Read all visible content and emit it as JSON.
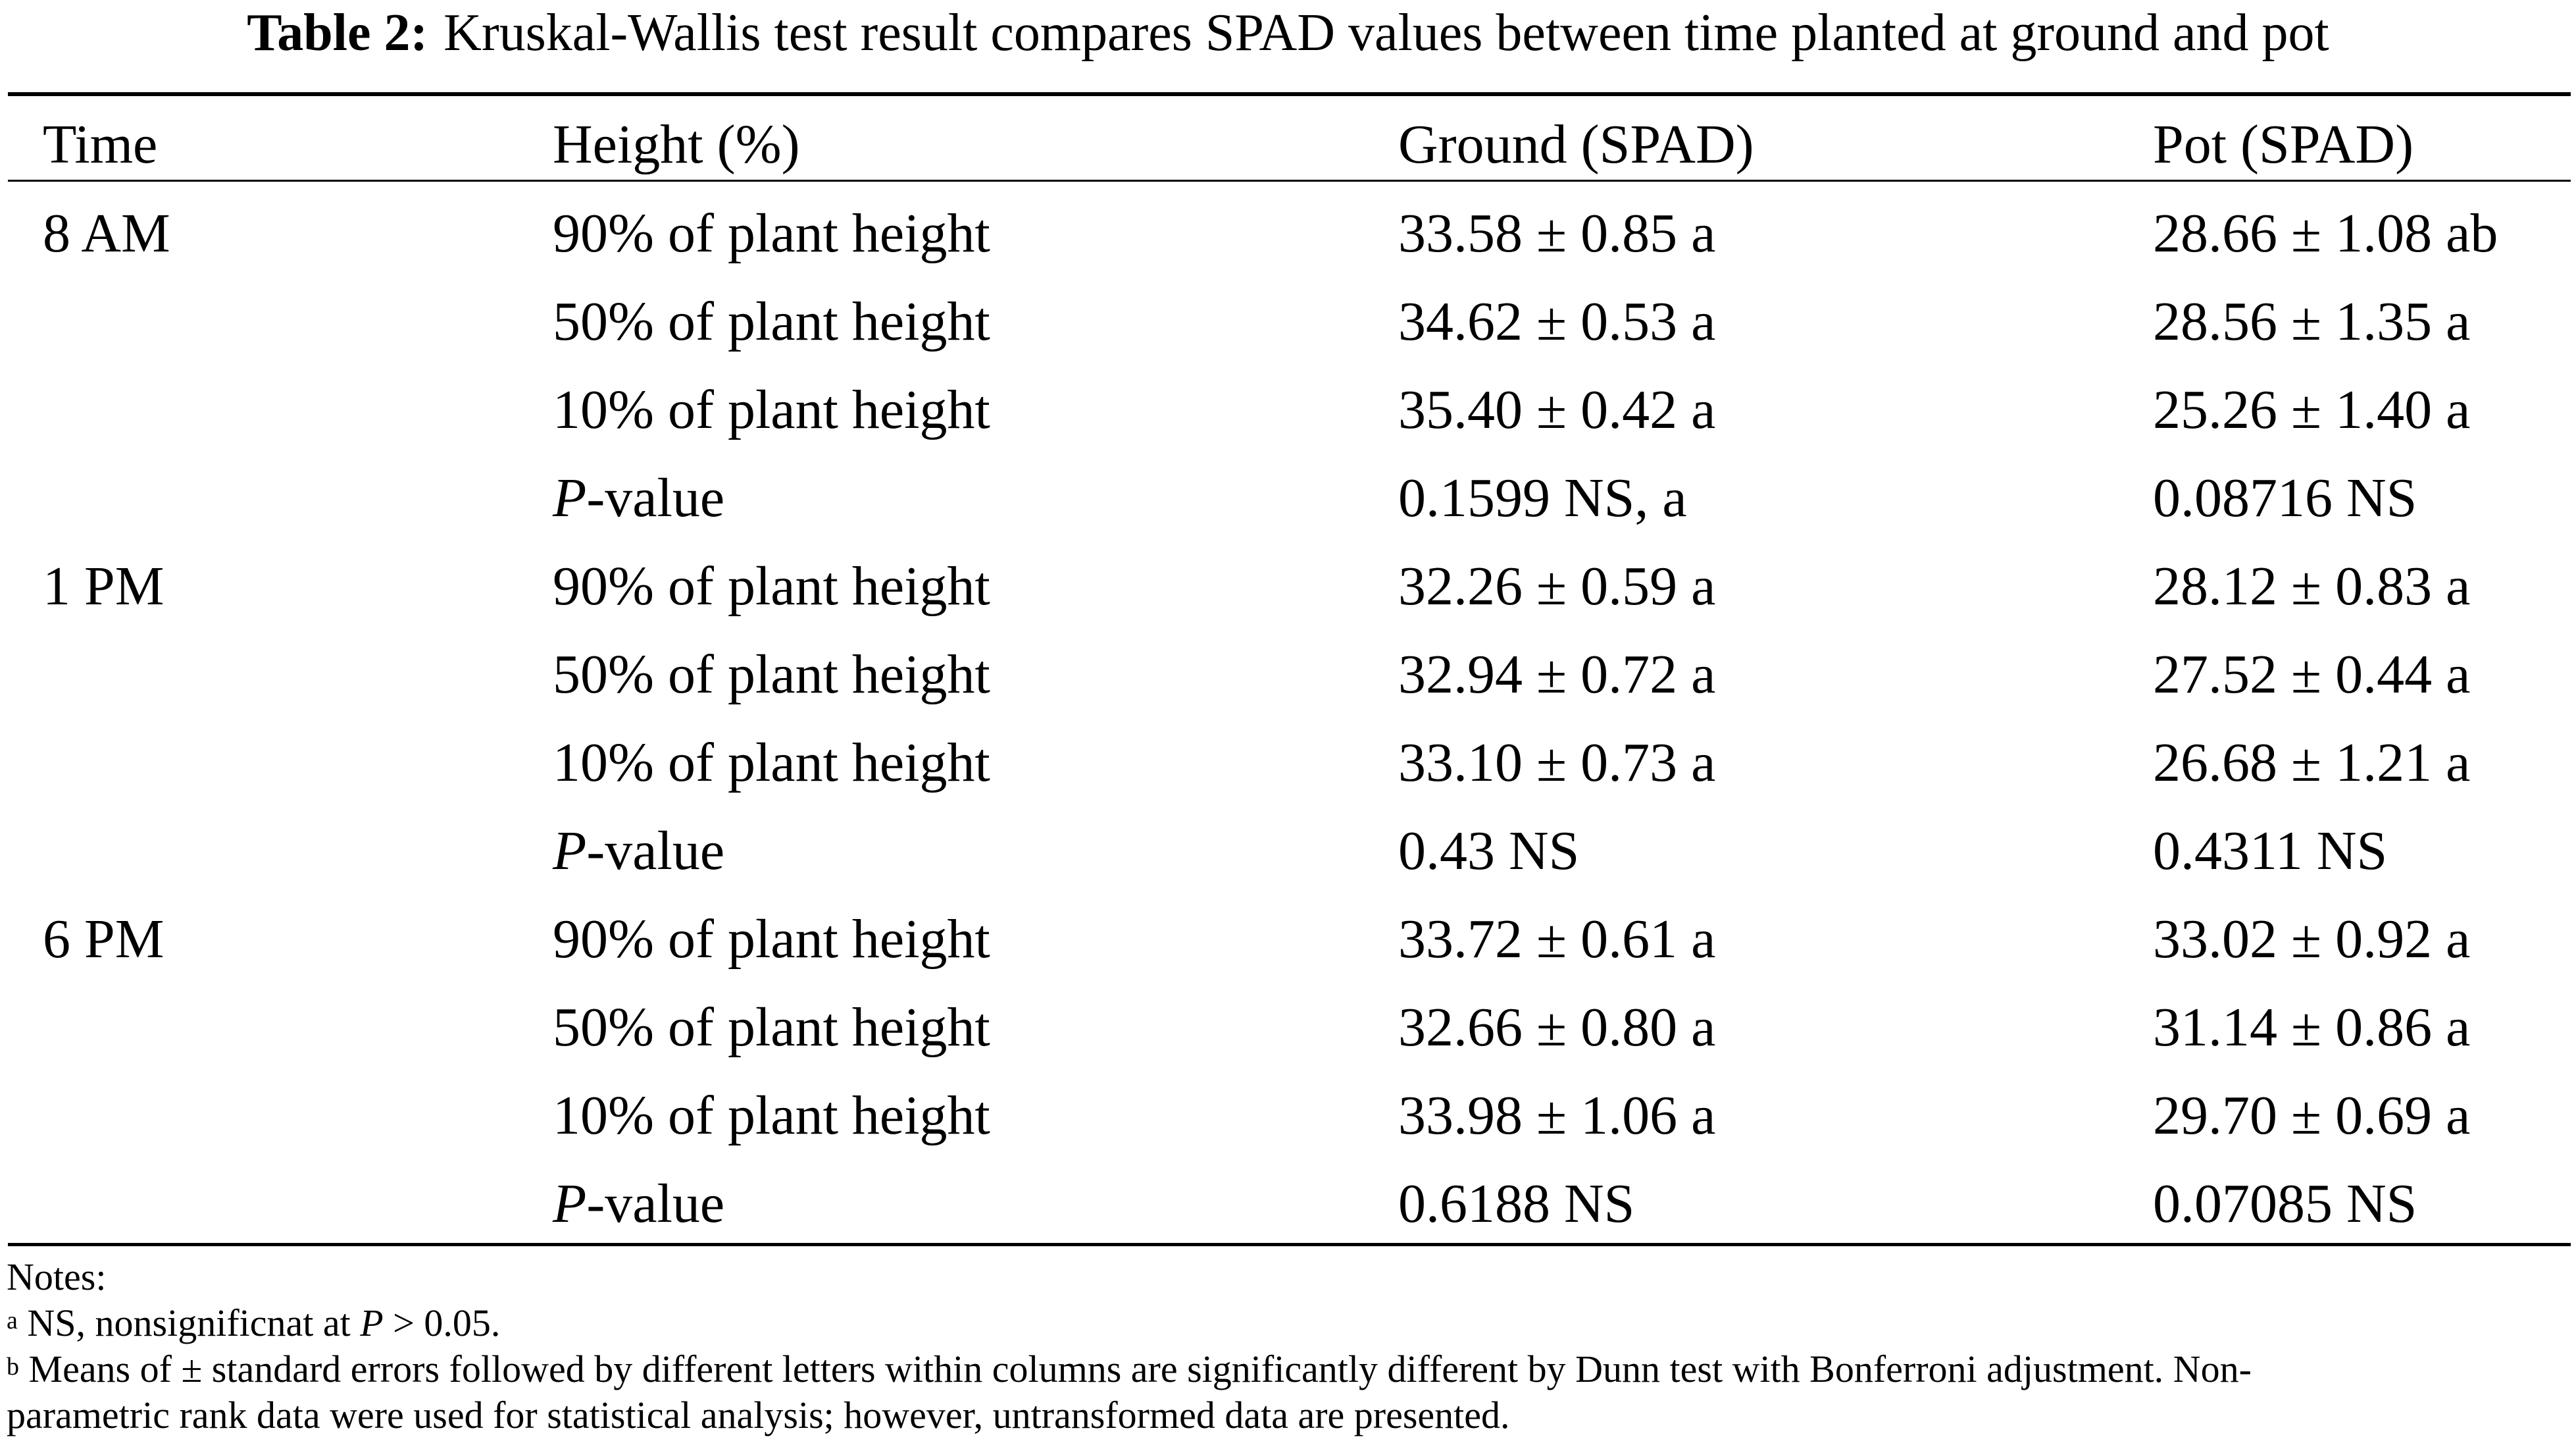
{
  "caption": {
    "label": "Table 2:",
    "text": "Kruskal-Wallis test result compares SPAD values between time planted at ground and pot"
  },
  "headers": {
    "time": "Time",
    "height": "Height (%)",
    "ground": "Ground (SPAD)",
    "pot": "Pot (SPAD)"
  },
  "rows": [
    {
      "time": "8 AM",
      "height": "90% of plant height",
      "ground": "33.58 ± 0.85 a",
      "pot": "28.66 ± 1.08 ab"
    },
    {
      "time": "",
      "height": "50% of plant height",
      "ground": "34.62 ± 0.53 a",
      "pot": "28.56 ± 1.35 a"
    },
    {
      "time": "",
      "height": "10% of plant height",
      "ground": "35.40 ± 0.42 a",
      "pot": "25.26 ± 1.40 a"
    },
    {
      "time": "",
      "height_p": "P",
      "height_rest": "-value",
      "ground": "0.1599 NS, a",
      "pot": "0.08716 NS"
    },
    {
      "time": "1 PM",
      "height": "90% of plant height",
      "ground": "32.26 ± 0.59 a",
      "pot": "28.12 ± 0.83 a"
    },
    {
      "time": "",
      "height": "50% of plant height",
      "ground": "32.94 ± 0.72 a",
      "pot": "27.52 ± 0.44 a"
    },
    {
      "time": "",
      "height": "10% of plant height",
      "ground": "33.10 ± 0.73 a",
      "pot": "26.68 ± 1.21 a"
    },
    {
      "time": "",
      "height_p": "P",
      "height_rest": "-value",
      "ground": "0.43 NS",
      "pot": "0.4311 NS"
    },
    {
      "time": "6 PM",
      "height": "90% of plant height",
      "ground": "33.72 ± 0.61 a",
      "pot": "33.02 ± 0.92 a"
    },
    {
      "time": "",
      "height": "50% of plant height",
      "ground": "32.66 ± 0.80 a",
      "pot": "31.14 ± 0.86 a"
    },
    {
      "time": "",
      "height": "10% of plant height",
      "ground": "33.98 ± 1.06 a",
      "pot": "29.70 ± 0.69 a"
    },
    {
      "time": "",
      "height_p": "P",
      "height_rest": "-value",
      "ground": "0.6188 NS",
      "pot": "0.07085 NS"
    }
  ],
  "notes": {
    "title": "Notes:",
    "a_mark": "a",
    "a_text": " NS, nonsignificnat at ",
    "a_p": "P",
    "a_tail": " > 0.05.",
    "b_mark": "b",
    "b_line1": " Means of ± standard errors followed by different letters within columns are significantly different by Dunn test with Bonferroni adjustment. Non-",
    "b_line2": "parametric rank data were used for statistical analysis; however, untransformed data are presented."
  }
}
